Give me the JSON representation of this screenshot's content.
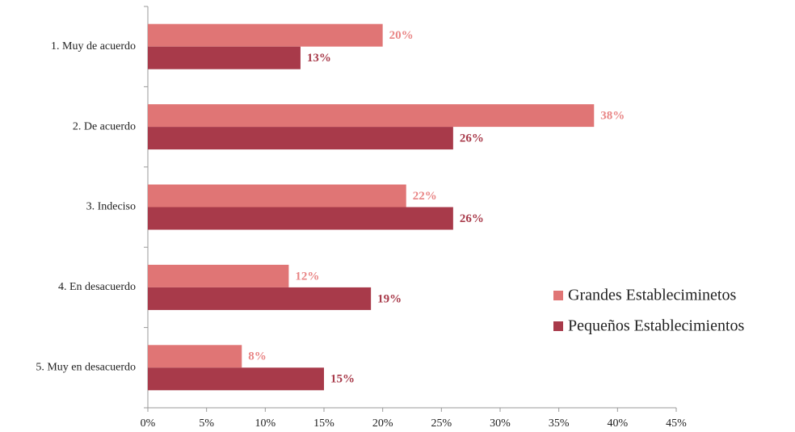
{
  "chart_data": {
    "type": "bar",
    "orientation": "horizontal",
    "categories": [
      "1. Muy de acuerdo",
      "2. De acuerdo",
      "3. Indeciso",
      "4. En desacuerdo",
      "5. Muy en desacuerdo"
    ],
    "series": [
      {
        "name": "Grandes Estableciminetos",
        "color": "#e07575",
        "label_color": "#e98585",
        "values": [
          20,
          38,
          22,
          12,
          8
        ],
        "value_labels": [
          "20%",
          "38%",
          "22%",
          "12%",
          "8%"
        ]
      },
      {
        "name": "Pequeños Establecimientos",
        "color": "#a83a4a",
        "label_color": "#a83a4a",
        "values": [
          13,
          26,
          26,
          19,
          15
        ],
        "value_labels": [
          "13%",
          "26%",
          "26%",
          "19%",
          "15%"
        ]
      }
    ],
    "xlim": [
      0,
      45
    ],
    "xticks": [
      {
        "value": 0,
        "label": "0%"
      },
      {
        "value": 5,
        "label": "5%"
      },
      {
        "value": 10,
        "label": "10%"
      },
      {
        "value": 15,
        "label": "15%"
      },
      {
        "value": 20,
        "label": "20%"
      },
      {
        "value": 25,
        "label": "25%"
      },
      {
        "value": 30,
        "label": "30%"
      },
      {
        "value": 35,
        "label": "35%"
      },
      {
        "value": 40,
        "label": "40%"
      },
      {
        "value": 45,
        "label": "45%"
      }
    ],
    "grid": false,
    "legend": "right"
  }
}
